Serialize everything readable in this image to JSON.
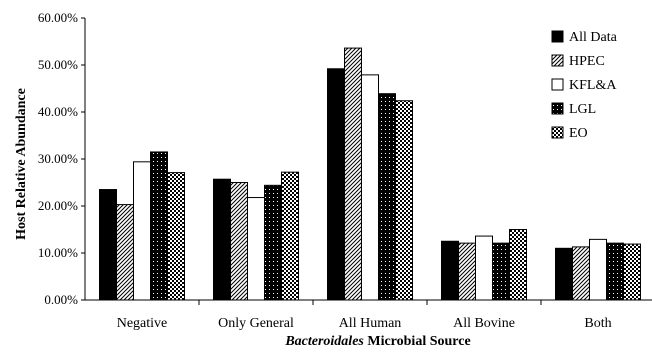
{
  "chart_data": {
    "type": "bar",
    "title": "",
    "ylabel": "Host Relative Abundance",
    "xlabel_italic": "Bacteroidales",
    "xlabel_rest": " Microbial Source",
    "ylim": [
      0,
      60
    ],
    "yticks": [
      "0.00%",
      "10.00%",
      "20.00%",
      "30.00%",
      "40.00%",
      "50.00%",
      "60.00%"
    ],
    "categories": [
      "Negative",
      "Only General",
      "All Human",
      "All Bovine",
      "Both"
    ],
    "legend_position": "right",
    "grid": false,
    "series": [
      {
        "name": "All Data",
        "pattern": "solid",
        "values": [
          23.5,
          25.7,
          49.2,
          12.5,
          11.0
        ]
      },
      {
        "name": "HPEC",
        "pattern": "diagonal",
        "values": [
          20.3,
          25.0,
          53.6,
          12.1,
          11.3
        ]
      },
      {
        "name": "KFL&A",
        "pattern": "white",
        "values": [
          29.4,
          21.8,
          47.9,
          13.6,
          12.9
        ]
      },
      {
        "name": "LGL",
        "pattern": "dots",
        "values": [
          31.5,
          24.4,
          43.9,
          12.1,
          12.1
        ]
      },
      {
        "name": "EO",
        "pattern": "checker",
        "values": [
          27.1,
          27.2,
          42.4,
          15.0,
          11.9
        ]
      }
    ]
  }
}
